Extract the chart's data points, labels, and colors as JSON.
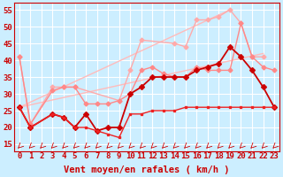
{
  "bg_color": "#cceeff",
  "grid_color": "#ffffff",
  "xlabel": "Vent moyen/en rafales ( km/h )",
  "xlim": [
    -0.5,
    23.5
  ],
  "ylim": [
    13,
    57
  ],
  "yticks": [
    15,
    20,
    25,
    30,
    35,
    40,
    45,
    50,
    55
  ],
  "xticks": [
    0,
    1,
    2,
    3,
    4,
    5,
    6,
    7,
    8,
    9,
    10,
    11,
    12,
    13,
    14,
    15,
    16,
    17,
    18,
    19,
    20,
    21,
    22,
    23
  ],
  "series": [
    {
      "x": [
        0,
        22
      ],
      "y": [
        26,
        42
      ],
      "color": "#ffbbbb",
      "lw": 1.0,
      "marker": null,
      "ms": 0
    },
    {
      "x": [
        0,
        19
      ],
      "y": [
        26,
        55
      ],
      "color": "#ffbbbb",
      "lw": 1.0,
      "marker": null,
      "ms": 0
    },
    {
      "x": [
        0,
        1,
        3,
        4,
        5,
        9,
        10,
        11,
        14,
        15,
        16,
        17,
        18,
        19,
        20,
        21,
        22
      ],
      "y": [
        41,
        21,
        32,
        32,
        32,
        28,
        37,
        46,
        45,
        44,
        52,
        52,
        53,
        55,
        51,
        41,
        41
      ],
      "color": "#ffaaaa",
      "lw": 1.0,
      "marker": "D",
      "ms": 2.5
    },
    {
      "x": [
        0,
        1,
        3,
        4,
        5,
        6,
        7,
        8,
        9,
        10,
        11,
        12,
        13,
        14,
        15,
        16,
        17,
        18,
        19,
        20,
        21,
        22,
        23
      ],
      "y": [
        41,
        21,
        31,
        32,
        32,
        27,
        27,
        27,
        28,
        30,
        37,
        38,
        36,
        35,
        35,
        38,
        37,
        37,
        37,
        51,
        41,
        38,
        37
      ],
      "color": "#ff8888",
      "lw": 1.0,
      "marker": "D",
      "ms": 2.5
    },
    {
      "x": [
        0,
        1,
        3,
        4,
        5,
        6,
        7,
        8,
        9,
        10,
        11,
        12,
        13,
        14,
        15,
        16,
        17,
        18,
        19,
        20,
        21,
        22,
        23
      ],
      "y": [
        26,
        20,
        24,
        23,
        20,
        24,
        19,
        20,
        20,
        30,
        32,
        35,
        35,
        35,
        35,
        37,
        38,
        39,
        44,
        41,
        37,
        32,
        26
      ],
      "color": "#cc0000",
      "lw": 1.3,
      "marker": "D",
      "ms": 3.0
    },
    {
      "x": [
        0,
        1,
        3,
        4,
        5,
        6,
        7,
        8,
        9,
        10,
        11,
        12,
        13,
        14,
        15,
        16,
        17,
        18,
        19,
        20,
        21,
        22,
        23
      ],
      "y": [
        26,
        20,
        24,
        23,
        20,
        20,
        19,
        18,
        17,
        24,
        24,
        25,
        25,
        25,
        26,
        26,
        26,
        26,
        26,
        26,
        26,
        26,
        26
      ],
      "color": "#ee2222",
      "lw": 1.0,
      "marker": "s",
      "ms": 2.0
    }
  ],
  "text_color": "#cc0000",
  "font_size": 6.5
}
